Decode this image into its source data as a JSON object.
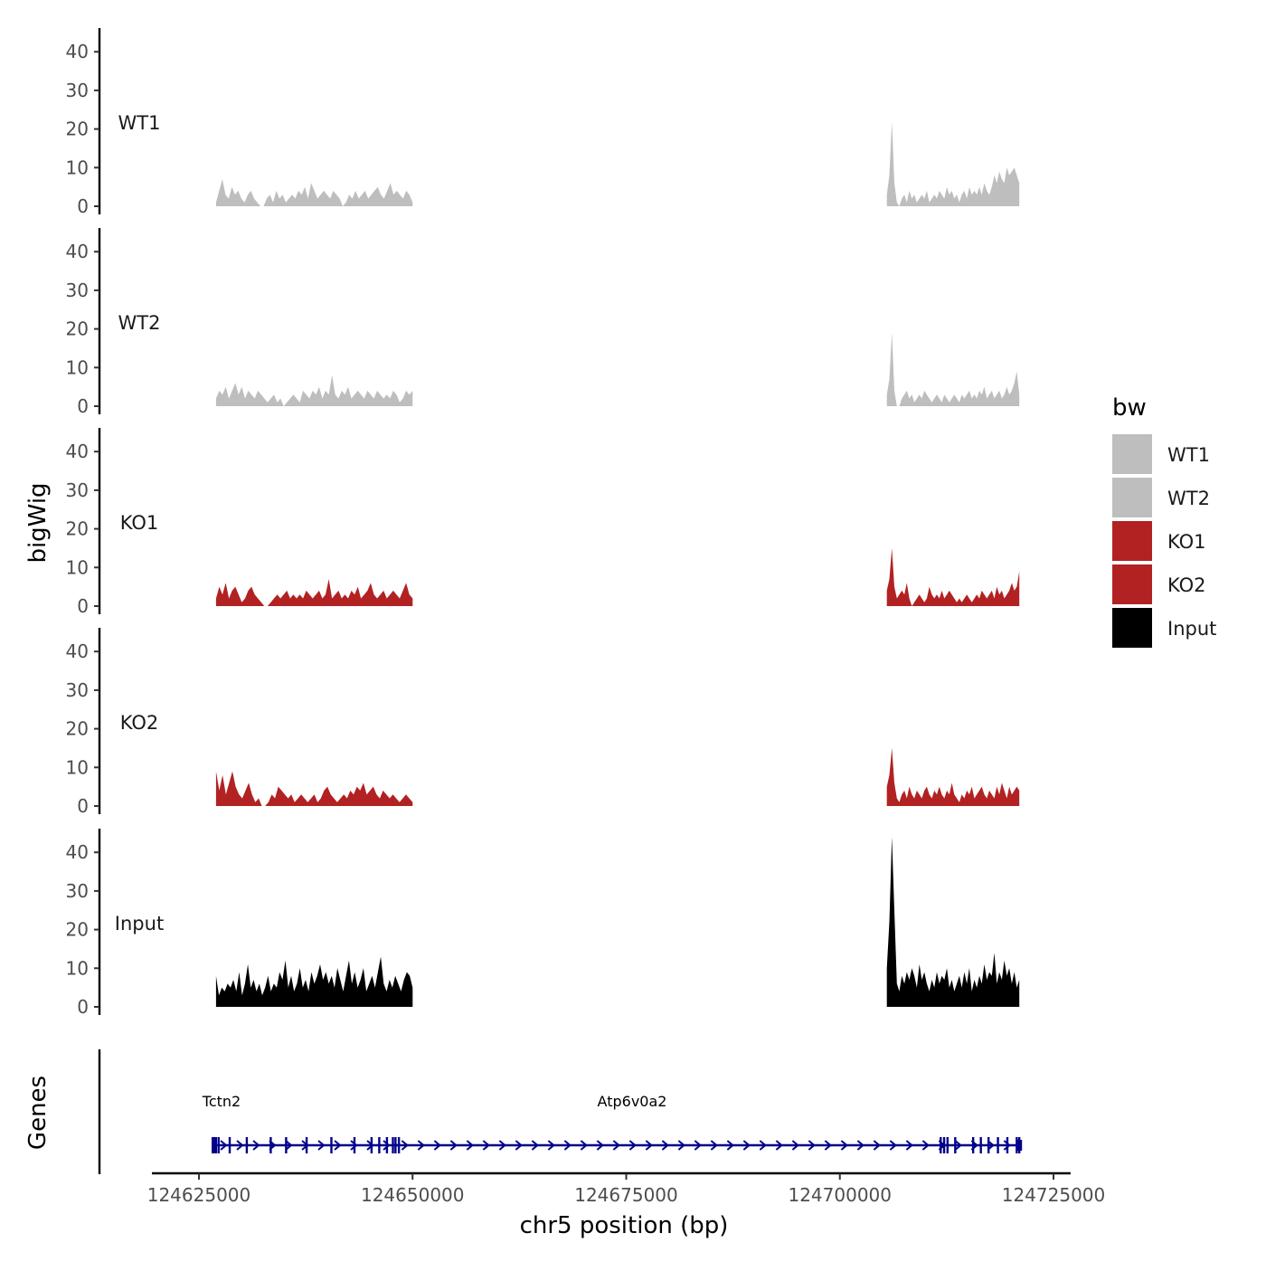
{
  "chart_data": {
    "type": "area",
    "chromosome": "chr5",
    "xlabel": "chr5 position (bp)",
    "ylabel": "bigWig",
    "genes_label": "Genes",
    "xlim": [
      124619500,
      124727000
    ],
    "xticks": [
      124625000,
      124650000,
      124675000,
      124700000,
      124725000
    ],
    "xtick_labels": [
      "124625000",
      "124650000",
      "124675000",
      "124700000",
      "124725000"
    ],
    "ylim": [
      0,
      45
    ],
    "yticks": [
      0,
      10,
      20,
      30,
      40
    ],
    "ytick_labels": [
      "0",
      "10",
      "20",
      "30",
      "40"
    ],
    "regions": [
      [
        124627000,
        124650000
      ],
      [
        124705500,
        124721000
      ]
    ],
    "legend": {
      "title": "bw",
      "entries": [
        {
          "name": "WT1",
          "color": "#bebebe"
        },
        {
          "name": "WT2",
          "color": "#bebebe"
        },
        {
          "name": "KO1",
          "color": "#b22222"
        },
        {
          "name": "KO2",
          "color": "#b22222"
        },
        {
          "name": "Input",
          "color": "#000000"
        }
      ]
    },
    "series": [
      {
        "name": "WT1",
        "color": "#bebebe",
        "region1": [
          1,
          4,
          7,
          3,
          2,
          5,
          3,
          4,
          2,
          1,
          3,
          4,
          2,
          1,
          0,
          0,
          2,
          3,
          1,
          4,
          2,
          3,
          1,
          2,
          3,
          2,
          4,
          3,
          5,
          2,
          6,
          4,
          2,
          3,
          4,
          3,
          2,
          4,
          3,
          2,
          0,
          1,
          3,
          2,
          4,
          2,
          3,
          4,
          2,
          3,
          4,
          5,
          3,
          2,
          4,
          6,
          3,
          4,
          3,
          2,
          4,
          3,
          1
        ],
        "region2": [
          3,
          8,
          22,
          6,
          1,
          0,
          2,
          3,
          1,
          4,
          2,
          3,
          1,
          2,
          3,
          2,
          4,
          1,
          2,
          3,
          2,
          4,
          3,
          2,
          5,
          3,
          4,
          2,
          3,
          1,
          3,
          4,
          2,
          5,
          3,
          4,
          3,
          5,
          3,
          6,
          4,
          3,
          5,
          8,
          6,
          9,
          7,
          6,
          10,
          8,
          9,
          10,
          8,
          6
        ]
      },
      {
        "name": "WT2",
        "color": "#bebebe",
        "region1": [
          2,
          4,
          3,
          5,
          2,
          4,
          6,
          3,
          5,
          2,
          4,
          3,
          2,
          4,
          3,
          2,
          1,
          2,
          3,
          1,
          2,
          0,
          1,
          2,
          3,
          2,
          1,
          4,
          3,
          2,
          4,
          3,
          5,
          2,
          4,
          3,
          8,
          3,
          2,
          4,
          3,
          5,
          2,
          3,
          4,
          3,
          2,
          4,
          3,
          2,
          4,
          3,
          2,
          3,
          2,
          4,
          3,
          1,
          2,
          4,
          3,
          4
        ],
        "region2": [
          3,
          7,
          19,
          4,
          0,
          0,
          2,
          3,
          4,
          2,
          3,
          1,
          2,
          3,
          2,
          4,
          3,
          2,
          1,
          2,
          3,
          2,
          1,
          3,
          2,
          1,
          2,
          3,
          2,
          1,
          3,
          2,
          3,
          4,
          2,
          3,
          2,
          4,
          3,
          5,
          2,
          3,
          4,
          2,
          3,
          4,
          2,
          3,
          5,
          3,
          4,
          6,
          9,
          3
        ]
      },
      {
        "name": "KO1",
        "color": "#b22222",
        "region1": [
          2,
          5,
          3,
          6,
          2,
          4,
          5,
          3,
          1,
          2,
          4,
          5,
          3,
          2,
          1,
          0,
          0,
          1,
          2,
          3,
          2,
          3,
          4,
          2,
          3,
          2,
          3,
          2,
          4,
          3,
          2,
          3,
          4,
          2,
          3,
          7,
          2,
          3,
          4,
          2,
          3,
          2,
          4,
          3,
          5,
          2,
          3,
          4,
          6,
          3,
          2,
          3,
          4,
          2,
          3,
          4,
          3,
          2,
          4,
          6,
          3,
          2
        ],
        "region2": [
          4,
          7,
          15,
          5,
          2,
          3,
          4,
          3,
          6,
          2,
          0,
          1,
          2,
          3,
          2,
          1,
          2,
          5,
          3,
          2,
          3,
          2,
          4,
          2,
          3,
          4,
          3,
          2,
          1,
          2,
          1,
          2,
          3,
          2,
          1,
          2,
          3,
          2,
          4,
          3,
          2,
          3,
          4,
          2,
          5,
          3,
          4,
          2,
          3,
          4,
          6,
          4,
          5,
          9
        ]
      },
      {
        "name": "KO2",
        "color": "#b22222",
        "region1": [
          9,
          4,
          8,
          3,
          6,
          9,
          5,
          3,
          2,
          4,
          6,
          3,
          1,
          2,
          0,
          0,
          1,
          3,
          2,
          5,
          4,
          3,
          2,
          3,
          1,
          2,
          3,
          2,
          1,
          2,
          3,
          1,
          2,
          4,
          5,
          3,
          2,
          1,
          2,
          3,
          2,
          4,
          3,
          5,
          4,
          6,
          3,
          4,
          5,
          3,
          2,
          4,
          3,
          2,
          3,
          2,
          1,
          2,
          3,
          2,
          1
        ],
        "region2": [
          5,
          8,
          15,
          6,
          2,
          1,
          3,
          4,
          2,
          5,
          3,
          2,
          4,
          3,
          2,
          4,
          5,
          3,
          2,
          4,
          3,
          5,
          3,
          2,
          4,
          3,
          6,
          3,
          2,
          1,
          3,
          2,
          4,
          3,
          5,
          2,
          3,
          4,
          5,
          3,
          2,
          4,
          3,
          2,
          5,
          3,
          6,
          4,
          2,
          5,
          3,
          4,
          5,
          4
        ]
      },
      {
        "name": "Input",
        "color": "#000000",
        "region1": [
          8,
          3,
          5,
          4,
          6,
          5,
          7,
          4,
          9,
          3,
          6,
          11,
          5,
          7,
          4,
          6,
          3,
          5,
          8,
          4,
          6,
          5,
          9,
          7,
          12,
          5,
          8,
          4,
          6,
          10,
          5,
          7,
          4,
          9,
          6,
          8,
          11,
          7,
          9,
          6,
          8,
          5,
          10,
          7,
          4,
          8,
          12,
          6,
          9,
          5,
          7,
          10,
          4,
          6,
          8,
          5,
          9,
          13,
          6,
          4,
          7,
          5,
          8,
          6,
          4,
          7,
          9,
          8,
          5
        ],
        "region2": [
          10,
          22,
          44,
          25,
          6,
          4,
          8,
          6,
          9,
          7,
          10,
          8,
          5,
          11,
          7,
          9,
          6,
          4,
          7,
          5,
          9,
          6,
          8,
          7,
          10,
          5,
          7,
          4,
          6,
          8,
          5,
          9,
          6,
          10,
          4,
          7,
          5,
          8,
          6,
          11,
          7,
          9,
          8,
          14,
          6,
          9,
          7,
          12,
          8,
          10,
          6,
          9,
          5,
          7
        ]
      }
    ],
    "genes": [
      {
        "name": "Tctn2",
        "strand": "+",
        "start": 124626800,
        "end": 124648500,
        "exons": [
          124626800,
          124627300,
          124628600,
          124630600,
          124633400,
          124635200,
          124637600,
          124640500,
          124643200,
          124645200,
          124646100,
          124647000,
          124647700
        ]
      },
      {
        "name": "Atp6v0a2",
        "strand": "+",
        "start": 124648000,
        "end": 124721000,
        "exons": [
          124648000,
          124648400,
          124711800,
          124712200,
          124712600,
          124713500,
          124715600,
          124716500,
          124717400,
          124718500,
          124719600,
          124720700,
          124721000
        ]
      }
    ]
  }
}
